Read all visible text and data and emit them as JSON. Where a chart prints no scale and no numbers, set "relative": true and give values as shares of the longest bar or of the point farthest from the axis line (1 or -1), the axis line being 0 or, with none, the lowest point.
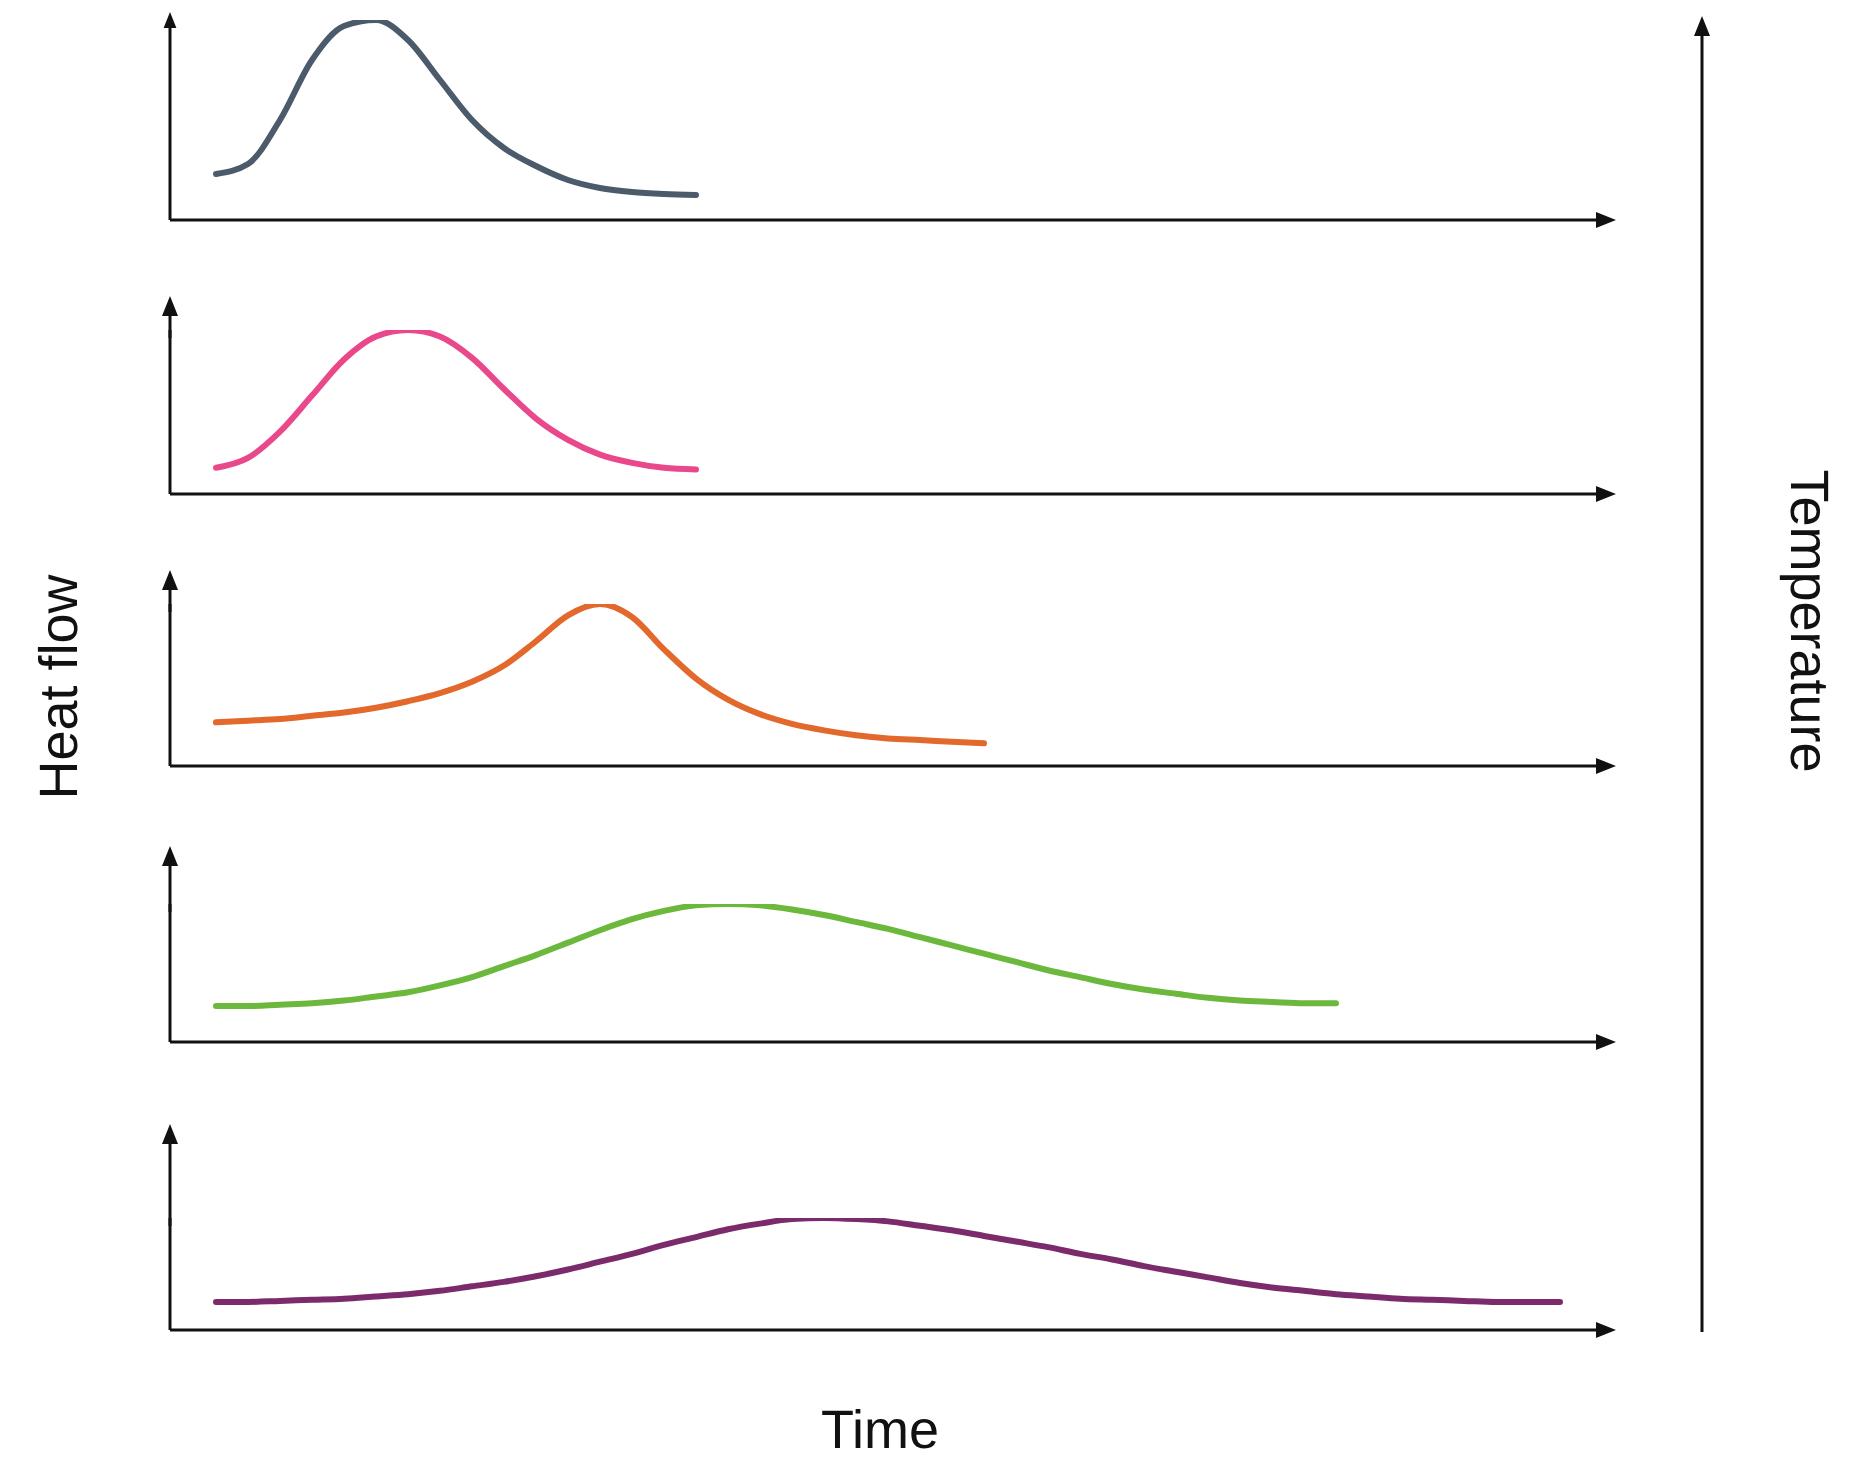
{
  "chart_data": [
    {
      "type": "line",
      "relative": true,
      "tick_labels": false,
      "categories": [
        null,
        null,
        null,
        null,
        null,
        null,
        null,
        null,
        null,
        null,
        null,
        null,
        null,
        null,
        null,
        null,
        null,
        null,
        null,
        null,
        null,
        null,
        null,
        null,
        null,
        null,
        null,
        null,
        null,
        null,
        null,
        null,
        null,
        null,
        null,
        null,
        null,
        null,
        null,
        null,
        null,
        null,
        null
      ],
      "series": [
        {
          "color": "#4b5b6b",
          "values": [
            0.23,
            0.28,
            0.5,
            0.8,
            0.97,
            1.0,
            0.9,
            0.7,
            0.5,
            0.36,
            0.27,
            0.2,
            0.16,
            0.14,
            0.13,
            0.125,
            null,
            null,
            null,
            null,
            null,
            null,
            null,
            null,
            null,
            null,
            null,
            null,
            null,
            null,
            null,
            null,
            null,
            null,
            null,
            null,
            null,
            null,
            null,
            null,
            null,
            null,
            null
          ]
        }
      ]
    },
    {
      "type": "line",
      "relative": true,
      "tick_labels": false,
      "categories": [
        null,
        null,
        null,
        null,
        null,
        null,
        null,
        null,
        null,
        null,
        null,
        null,
        null,
        null,
        null,
        null,
        null,
        null,
        null,
        null,
        null,
        null,
        null,
        null,
        null,
        null,
        null,
        null,
        null,
        null,
        null,
        null,
        null,
        null,
        null,
        null,
        null,
        null,
        null,
        null,
        null,
        null,
        null
      ],
      "series": [
        {
          "color": "#e9498a",
          "values": [
            0.16,
            0.22,
            0.38,
            0.6,
            0.82,
            0.96,
            1.0,
            0.96,
            0.83,
            0.64,
            0.46,
            0.33,
            0.24,
            0.19,
            0.16,
            0.15,
            null,
            null,
            null,
            null,
            null,
            null,
            null,
            null,
            null,
            null,
            null,
            null,
            null,
            null,
            null,
            null,
            null,
            null,
            null,
            null,
            null,
            null,
            null,
            null,
            null,
            null,
            null
          ]
        }
      ]
    },
    {
      "type": "line",
      "relative": true,
      "tick_labels": false,
      "ylabel": "Heat flow",
      "annotations": [
        "Temperature"
      ],
      "categories": [
        null,
        null,
        null,
        null,
        null,
        null,
        null,
        null,
        null,
        null,
        null,
        null,
        null,
        null,
        null,
        null,
        null,
        null,
        null,
        null,
        null,
        null,
        null,
        null,
        null,
        null,
        null,
        null,
        null,
        null,
        null,
        null,
        null,
        null,
        null,
        null,
        null,
        null,
        null,
        null,
        null,
        null,
        null
      ],
      "series": [
        {
          "color": "#e2682c",
          "values": [
            0.27,
            0.28,
            0.29,
            0.31,
            0.33,
            0.36,
            0.4,
            0.45,
            0.52,
            0.62,
            0.77,
            0.93,
            1.0,
            0.92,
            0.72,
            0.54,
            0.41,
            0.32,
            0.26,
            0.22,
            0.19,
            0.17,
            0.16,
            0.15,
            0.14,
            null,
            null,
            null,
            null,
            null,
            null,
            null,
            null,
            null,
            null,
            null,
            null,
            null,
            null,
            null,
            null,
            null,
            null
          ]
        }
      ]
    },
    {
      "type": "line",
      "relative": true,
      "tick_labels": false,
      "categories": [
        null,
        null,
        null,
        null,
        null,
        null,
        null,
        null,
        null,
        null,
        null,
        null,
        null,
        null,
        null,
        null,
        null,
        null,
        null,
        null,
        null,
        null,
        null,
        null,
        null,
        null,
        null,
        null,
        null,
        null,
        null,
        null,
        null,
        null,
        null,
        null,
        null,
        null,
        null,
        null,
        null,
        null,
        null
      ],
      "series": [
        {
          "color": "#6cb83c",
          "values": [
            0.26,
            0.26,
            0.27,
            0.28,
            0.3,
            0.33,
            0.36,
            0.41,
            0.47,
            0.55,
            0.63,
            0.72,
            0.81,
            0.89,
            0.95,
            0.99,
            1.0,
            0.99,
            0.96,
            0.92,
            0.87,
            0.82,
            0.76,
            0.7,
            0.64,
            0.58,
            0.52,
            0.47,
            0.42,
            0.38,
            0.35,
            0.32,
            0.3,
            0.29,
            0.28,
            0.28,
            null,
            null,
            null,
            null,
            null,
            null,
            null
          ]
        }
      ]
    },
    {
      "type": "line",
      "relative": true,
      "tick_labels": false,
      "xlabel": "Time",
      "categories": [
        null,
        null,
        null,
        null,
        null,
        null,
        null,
        null,
        null,
        null,
        null,
        null,
        null,
        null,
        null,
        null,
        null,
        null,
        null,
        null,
        null,
        null,
        null,
        null,
        null,
        null,
        null,
        null,
        null,
        null,
        null,
        null,
        null,
        null,
        null,
        null,
        null,
        null,
        null,
        null,
        null,
        null,
        null
      ],
      "series": [
        {
          "color": "#7b2b6b",
          "values": [
            0.25,
            0.25,
            0.26,
            0.27,
            0.28,
            0.3,
            0.32,
            0.35,
            0.39,
            0.43,
            0.48,
            0.54,
            0.61,
            0.68,
            0.76,
            0.83,
            0.9,
            0.95,
            0.99,
            1.0,
            0.99,
            0.97,
            0.93,
            0.89,
            0.84,
            0.79,
            0.74,
            0.68,
            0.63,
            0.57,
            0.52,
            0.47,
            0.42,
            0.38,
            0.35,
            0.32,
            0.3,
            0.28,
            0.27,
            0.26,
            0.25,
            0.25,
            0.25
          ]
        }
      ]
    }
  ]
}
